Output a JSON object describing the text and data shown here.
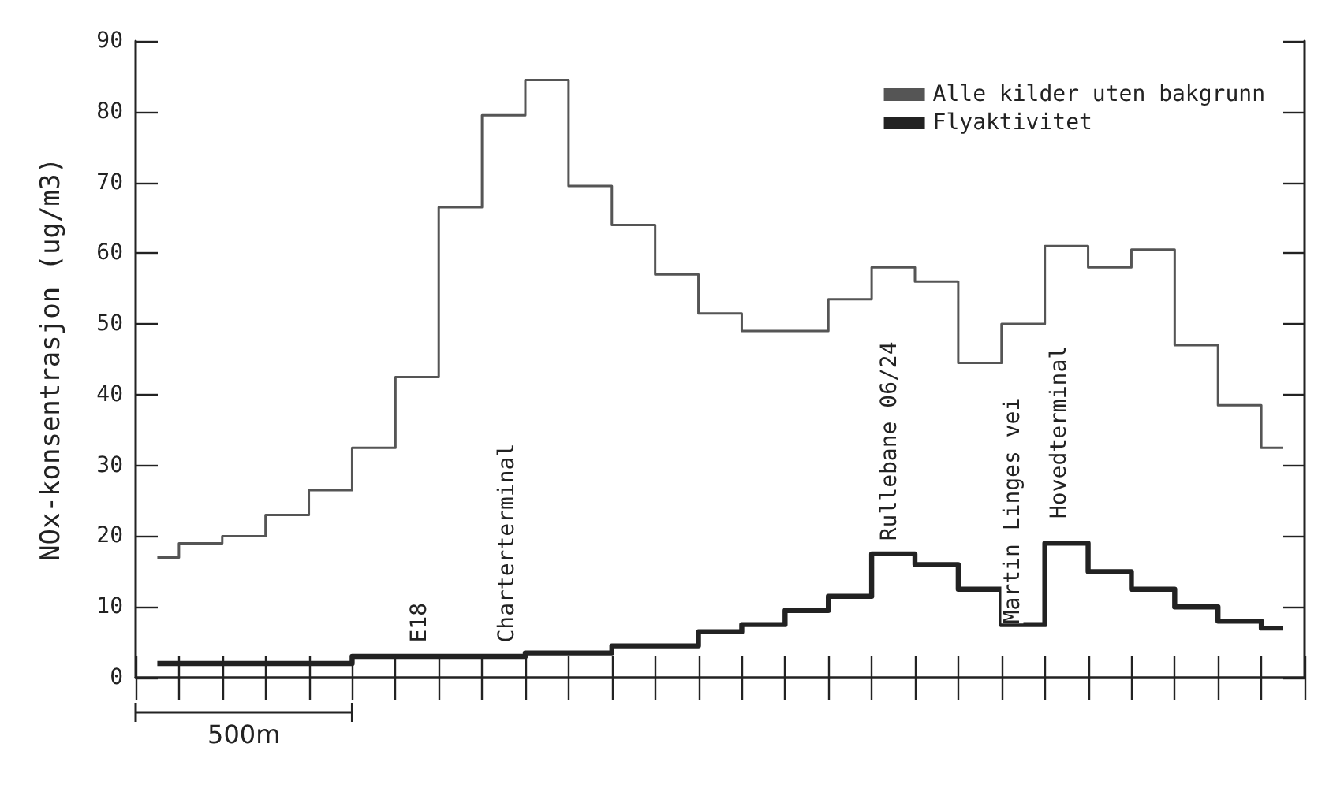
{
  "chart_data": {
    "type": "step",
    "ylabel": "NOx-konsentrasjon (ug/m3)",
    "categories": [
      null,
      null,
      null,
      null,
      null,
      null,
      null,
      null,
      null,
      null,
      null,
      null,
      null,
      null,
      null,
      null,
      null,
      null,
      null,
      null,
      null,
      null,
      null,
      null,
      null,
      null,
      null
    ],
    "series": [
      {
        "name": "Alle kilder uten bakgrunn",
        "color": "#555555",
        "values": [
          17,
          19,
          20,
          23,
          26.5,
          32.5,
          42.5,
          66.5,
          79.5,
          84.5,
          69.5,
          64,
          57,
          51.5,
          49,
          49,
          53.5,
          58,
          56,
          44.5,
          50,
          61,
          58,
          60.5,
          47,
          38.5,
          32.5
        ]
      },
      {
        "name": "Flyaktivitet",
        "color": "#222222",
        "values": [
          2,
          2,
          2,
          2,
          2,
          3,
          3,
          3,
          3,
          3.5,
          3.5,
          4.5,
          4.5,
          6.5,
          7.5,
          9.5,
          11.5,
          17.5,
          16,
          12.5,
          7.5,
          19,
          15,
          12.5,
          10,
          8,
          7
        ]
      }
    ],
    "ylim": [
      0,
      90
    ],
    "yticks": [
      0,
      10,
      20,
      30,
      40,
      50,
      60,
      70,
      80,
      90
    ],
    "grid": false,
    "legend": "top right",
    "marker": "none",
    "line_style": "solid",
    "tick_labels": "y",
    "annotations": [
      "E18",
      "Charterterminal",
      "Rullebane 06/24",
      "Martin Linges vei",
      "Hovedterminal",
      "500m"
    ]
  }
}
